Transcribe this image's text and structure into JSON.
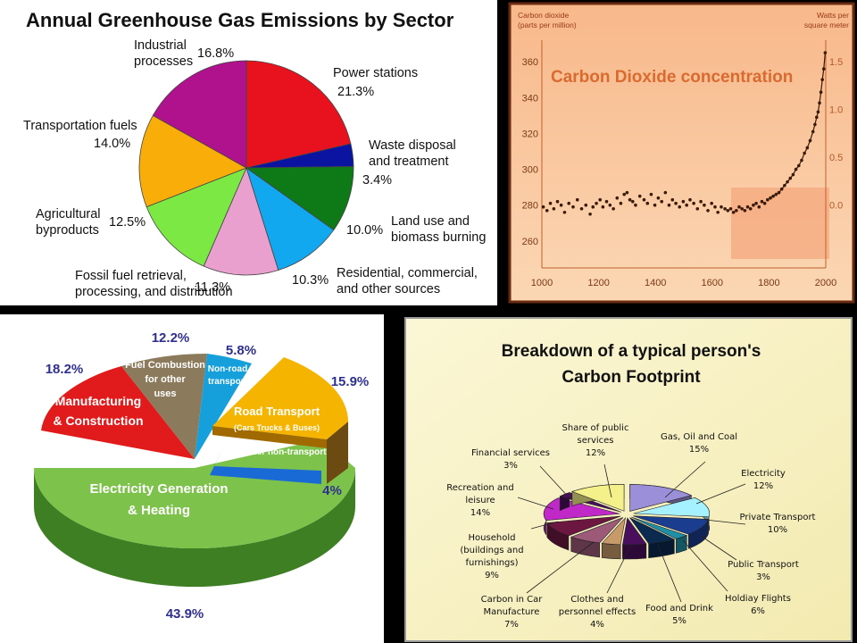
{
  "chart_data": [
    {
      "type": "pie",
      "title": "Annual Greenhouse Gas Emissions by Sector",
      "slices": [
        {
          "label": "Power stations",
          "value": 21.3,
          "value_text": "21.3%",
          "color": "#e8121e"
        },
        {
          "label": "Waste disposal and treatment",
          "value": 3.4,
          "value_text": "3.4%",
          "color": "#0a14a0"
        },
        {
          "label": "Land use and biomass burning",
          "value": 10.0,
          "value_text": "10.0%",
          "color": "#0e7a17"
        },
        {
          "label": "Residential, commercial, and other sources",
          "value": 10.3,
          "value_text": "10.3%",
          "color": "#12a8f0"
        },
        {
          "label": "Fossil fuel retrieval, processing, and distribution",
          "value": 11.3,
          "value_text": "11.3%",
          "color": "#e9a0cf"
        },
        {
          "label": "Agricultural byproducts",
          "value": 12.5,
          "value_text": "12.5%",
          "color": "#7be843"
        },
        {
          "label": "Transportation fuels",
          "value": 14.0,
          "value_text": "14.0%",
          "color": "#f9ad08"
        },
        {
          "label": "Industrial processes",
          "value": 16.8,
          "value_text": "16.8%",
          "color": "#b0118c"
        }
      ]
    },
    {
      "type": "scatter",
      "title": "Carbon Dioxide concentration",
      "ylabel": "Carbon dioxide (parts per million)",
      "y2label": "Watts per square meter",
      "xlim": [
        1000,
        2000
      ],
      "ylim": [
        245,
        372
      ],
      "x_ticks": [
        "1000",
        "1200",
        "1400",
        "1600",
        "1800",
        "2000"
      ],
      "y_ticks": [
        "260",
        "280",
        "300",
        "320",
        "340",
        "360"
      ],
      "y2_ticks": [
        "0.0",
        "0.5",
        "1.0",
        "1.5"
      ],
      "x": [
        1005,
        1018,
        1030,
        1042,
        1055,
        1068,
        1080,
        1095,
        1110,
        1125,
        1140,
        1155,
        1170,
        1180,
        1192,
        1205,
        1215,
        1228,
        1240,
        1252,
        1265,
        1278,
        1290,
        1300,
        1310,
        1320,
        1330,
        1345,
        1360,
        1372,
        1385,
        1398,
        1410,
        1422,
        1435,
        1448,
        1460,
        1472,
        1485,
        1498,
        1510,
        1522,
        1535,
        1548,
        1560,
        1572,
        1585,
        1598,
        1610,
        1620,
        1632,
        1645,
        1655,
        1665,
        1675,
        1685,
        1695,
        1705,
        1715,
        1725,
        1735,
        1745,
        1755,
        1765,
        1775,
        1785,
        1795,
        1805,
        1815,
        1825,
        1835,
        1845,
        1855,
        1865,
        1875,
        1885,
        1895,
        1905,
        1915,
        1925,
        1935,
        1945,
        1955,
        1962,
        1968,
        1973,
        1978,
        1983,
        1988,
        1993,
        1998
      ],
      "y": [
        279,
        277,
        281,
        278,
        282,
        280,
        276,
        281,
        279,
        283,
        278,
        280,
        275,
        279,
        281,
        283,
        279,
        282,
        280,
        278,
        284,
        281,
        286,
        287,
        283,
        282,
        280,
        285,
        283,
        281,
        286,
        280,
        284,
        282,
        287,
        280,
        283,
        281,
        279,
        282,
        280,
        283,
        281,
        278,
        282,
        280,
        277,
        281,
        279,
        276,
        279,
        278,
        277,
        278,
        276,
        277,
        279,
        278,
        277,
        279,
        278,
        280,
        281,
        279,
        282,
        281,
        283,
        284,
        285,
        286,
        287,
        289,
        291,
        293,
        295,
        297,
        300,
        302,
        305,
        309,
        312,
        316,
        321,
        325,
        329,
        332,
        337,
        343,
        350,
        356,
        365
      ]
    },
    {
      "type": "pie",
      "slices": [
        {
          "label": "Electricity Generation & Heating",
          "value": 43.9,
          "value_text": "43.9%",
          "color": "#7dc24b"
        },
        {
          "label": "Manufacturing & Construction",
          "value": 18.2,
          "value_text": "18.2%",
          "color": "#e11b1b"
        },
        {
          "label": "Fuel Combustion for other uses",
          "value": 12.2,
          "value_text": "12.2%",
          "color": "#8b7a5c"
        },
        {
          "label": "Non-road transport",
          "value": 5.8,
          "value_text": "5.8%",
          "color": "#15a0db"
        },
        {
          "label": "Road Transport",
          "sub": "(Cars Trucks & Buses)",
          "value": 15.9,
          "value_text": "15.9%",
          "color": "#f4b400"
        },
        {
          "label": "Other non-transport",
          "value": 4,
          "value_text": "4%",
          "color": "#1a6ad6"
        }
      ]
    },
    {
      "type": "pie",
      "title": "Breakdown of a typical person's Carbon Footprint",
      "slices": [
        {
          "label": "Gas, Oil and Coal",
          "value_text": "15%",
          "value": 15,
          "color": "#9a8fd8"
        },
        {
          "label": "Electricity",
          "value_text": "12%",
          "value": 12,
          "color": "#a6f1ff"
        },
        {
          "label": "Private Transport",
          "value_text": "10%",
          "value": 10,
          "color": "#1a3d8f"
        },
        {
          "label": "Public Transport",
          "value_text": "3%",
          "value": 3,
          "color": "#1f8fa6"
        },
        {
          "label": "Holdiay Flights",
          "value_text": "6%",
          "value": 6,
          "color": "#0a2a50"
        },
        {
          "label": "Food and Drink",
          "value_text": "5%",
          "value": 5,
          "color": "#4a0f5c"
        },
        {
          "label": "Clothes and personnel effects",
          "value_text": "4%",
          "value": 4,
          "color": "#c89a6a"
        },
        {
          "label": "Carbon in Car Manufacture",
          "value_text": "7%",
          "value": 7,
          "color": "#9c5a78"
        },
        {
          "label": "Household (buildings and furnishings)",
          "value_text": "9%",
          "value": 9,
          "color": "#6b1740"
        },
        {
          "label": "Recreation and leisure",
          "value_text": "14%",
          "value": 14,
          "color": "#c028c8"
        },
        {
          "label": "Financial services",
          "value_text": "3%",
          "value": 3,
          "color": "#4a0f5c"
        },
        {
          "label": "Share of public services",
          "value_text": "12%",
          "value": 12,
          "color": "#f4f08a"
        }
      ]
    }
  ]
}
